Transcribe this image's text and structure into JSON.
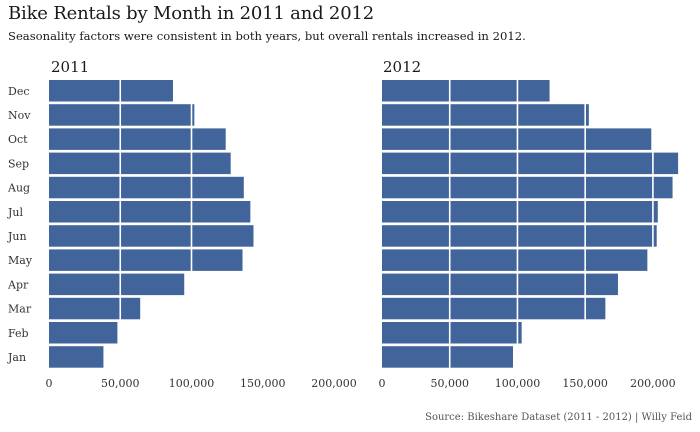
{
  "header": {
    "title": "Bike Rentals by Month in 2011 and 2012",
    "subtitle": "Seasonality factors were consistent in both years, but overall rentals increased in 2012."
  },
  "footer": {
    "source": "Source: Bikeshare Dataset (2011 - 2012) | Willy Feid"
  },
  "colors": {
    "bar": "#41659a",
    "gridline": "#ffffff"
  },
  "chart_data": [
    {
      "type": "bar",
      "orientation": "horizontal",
      "title": "2011",
      "categories": [
        "Dec",
        "Nov",
        "Oct",
        "Sep",
        "Aug",
        "Jul",
        "Jun",
        "May",
        "Apr",
        "Mar",
        "Feb",
        "Jan"
      ],
      "values": [
        87000,
        102000,
        124000,
        127500,
        136700,
        141300,
        143500,
        135800,
        94900,
        64000,
        48000,
        38200
      ],
      "xlim": [
        0,
        200000
      ],
      "xticks": [
        "0",
        "50,000",
        "100,000",
        "150,000",
        "200,000"
      ],
      "tick_values": [
        0,
        50000,
        100000,
        150000,
        200000
      ],
      "grid": true
    },
    {
      "type": "bar",
      "orientation": "horizontal",
      "title": "2012",
      "categories": [
        "Dec",
        "Nov",
        "Oct",
        "Sep",
        "Aug",
        "Jul",
        "Jun",
        "May",
        "Apr",
        "Mar",
        "Feb",
        "Jan"
      ],
      "values": [
        123700,
        152700,
        198800,
        218600,
        214500,
        203600,
        202800,
        195900,
        174200,
        164900,
        103100,
        96700
      ],
      "xlim": [
        0,
        220000
      ],
      "xticks": [
        "0",
        "50,000",
        "100,000",
        "150,000",
        "200,000"
      ],
      "tick_values": [
        0,
        50000,
        100000,
        150000,
        200000
      ],
      "grid": true
    }
  ]
}
